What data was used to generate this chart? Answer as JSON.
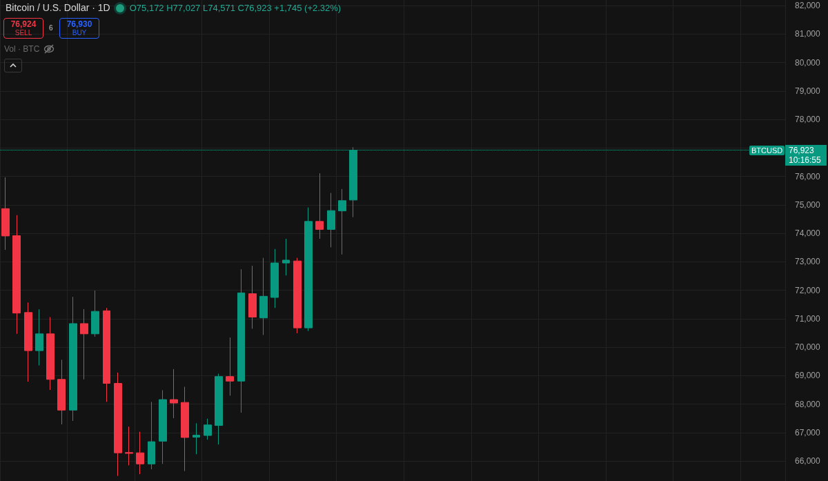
{
  "chart_data": {
    "type": "candlestick",
    "title": "Bitcoin / U.S. Dollar · 1D",
    "annotations": [
      "O75,172 H77,027 L74,571 C76,923 +1,745 (+2.32%)",
      "76,924",
      "SELL",
      "6",
      "76,930",
      "BUY",
      "Vol · BTC",
      "10:16:55",
      "76,923"
    ],
    "categories": [
      null,
      null,
      null,
      null,
      null,
      null,
      null,
      null,
      null,
      null,
      null,
      null,
      null,
      null,
      null,
      null,
      null,
      null,
      null,
      null,
      null,
      null,
      null,
      null,
      null,
      null,
      null,
      null,
      null,
      null,
      null,
      null,
      null,
      null,
      null,
      null,
      null,
      null,
      null,
      null,
      null,
      null,
      null,
      null,
      null,
      null,
      null,
      null,
      null,
      null,
      null,
      null,
      null,
      null,
      null,
      null,
      null,
      null,
      null,
      null,
      null,
      null,
      null,
      null,
      null,
      null,
      null,
      null,
      null,
      null
    ],
    "ohlc": [
      [
        74870,
        75970,
        73420,
        73910
      ],
      [
        73920,
        74640,
        70470,
        71200
      ],
      [
        71220,
        71570,
        68790,
        69880
      ],
      [
        69880,
        71330,
        69360,
        70470
      ],
      [
        70470,
        71060,
        68500,
        68870
      ],
      [
        68870,
        69560,
        67290,
        67790
      ],
      [
        67790,
        71770,
        67410,
        70830
      ],
      [
        70830,
        71340,
        68870,
        70470
      ],
      [
        70470,
        71990,
        70370,
        71260
      ],
      [
        71280,
        71380,
        68080,
        68730
      ],
      [
        68730,
        69110,
        65480,
        66290
      ],
      [
        66300,
        67210,
        65850,
        66270
      ],
      [
        66290,
        67030,
        65540,
        65900
      ],
      [
        65900,
        68080,
        65710,
        66680
      ],
      [
        66700,
        68490,
        65900,
        68160
      ],
      [
        68160,
        69230,
        67510,
        68040
      ],
      [
        68060,
        68610,
        65650,
        66830
      ],
      [
        66840,
        67330,
        66240,
        66910
      ],
      [
        66900,
        67490,
        66750,
        67270
      ],
      [
        67250,
        69070,
        66580,
        68970
      ],
      [
        68970,
        70340,
        68300,
        68810
      ],
      [
        68810,
        72740,
        67700,
        71910
      ],
      [
        71880,
        72860,
        70650,
        71060
      ],
      [
        71030,
        73140,
        70430,
        71790
      ],
      [
        71750,
        73450,
        71380,
        72960
      ],
      [
        72960,
        73810,
        72520,
        73060
      ],
      [
        73030,
        73140,
        70490,
        70680
      ],
      [
        70680,
        74910,
        70570,
        74420
      ],
      [
        74420,
        76110,
        73810,
        74140
      ],
      [
        74140,
        75420,
        73510,
        74800
      ],
      [
        74790,
        75560,
        73260,
        75150
      ],
      [
        75172,
        77027,
        74571,
        76923
      ],
      null,
      null,
      null,
      null,
      null,
      null,
      null,
      null,
      null,
      null,
      null,
      null,
      null,
      null,
      null,
      null,
      null,
      null,
      null,
      null,
      null,
      null,
      null,
      null,
      null,
      null,
      null,
      null,
      null,
      null,
      null,
      null,
      null,
      null,
      null,
      null,
      null,
      null
    ],
    "colors": [
      "#f23645",
      "#f23645",
      "#f23645",
      "#089981",
      "#f23645",
      "#f23645",
      "#089981",
      "#f23645",
      "#089981",
      "#f23645",
      "#f23645",
      "#f23645",
      "#f23645",
      "#089981",
      "#089981",
      "#f23645",
      "#f23645",
      "#089981",
      "#089981",
      "#089981",
      "#f23645",
      "#089981",
      "#f23645",
      "#089981",
      "#089981",
      "#089981",
      "#f23645",
      "#089981",
      "#f23645",
      "#089981",
      "#089981",
      "#089981",
      null,
      null,
      null,
      null,
      null,
      null,
      null,
      null,
      null,
      null,
      null,
      null,
      null,
      null,
      null,
      null,
      null,
      null,
      null,
      null,
      null,
      null,
      null,
      null,
      null,
      null,
      null,
      null,
      null,
      null,
      null,
      null,
      null,
      null,
      null,
      null,
      null,
      null
    ],
    "ylim": [
      65300,
      82200
    ],
    "yticks": [
      {
        "value": 66000,
        "label": "66,000"
      },
      {
        "value": 67000,
        "label": "67,000"
      },
      {
        "value": 68000,
        "label": "68,000"
      },
      {
        "value": 69000,
        "label": "69,000"
      },
      {
        "value": 70000,
        "label": "70,000"
      },
      {
        "value": 71000,
        "label": "71,000"
      },
      {
        "value": 72000,
        "label": "72,000"
      },
      {
        "value": 73000,
        "label": "73,000"
      },
      {
        "value": 74000,
        "label": "74,000"
      },
      {
        "value": 75000,
        "label": "75,000"
      },
      {
        "value": 76000,
        "label": "76,000"
      },
      {
        "value": 77000,
        "label": null
      },
      {
        "value": 78000,
        "label": "78,000"
      },
      {
        "value": 79000,
        "label": "79,000"
      },
      {
        "value": 80000,
        "label": "80,000"
      },
      {
        "value": 81000,
        "label": "81,000"
      },
      {
        "value": 82000,
        "label": "82,000"
      }
    ],
    "ref_lines": [
      {
        "axis": "y",
        "value": 76923,
        "label": "BTCUSD",
        "color": "#089981",
        "line_style": "dotted"
      }
    ],
    "grid": true
  }
}
